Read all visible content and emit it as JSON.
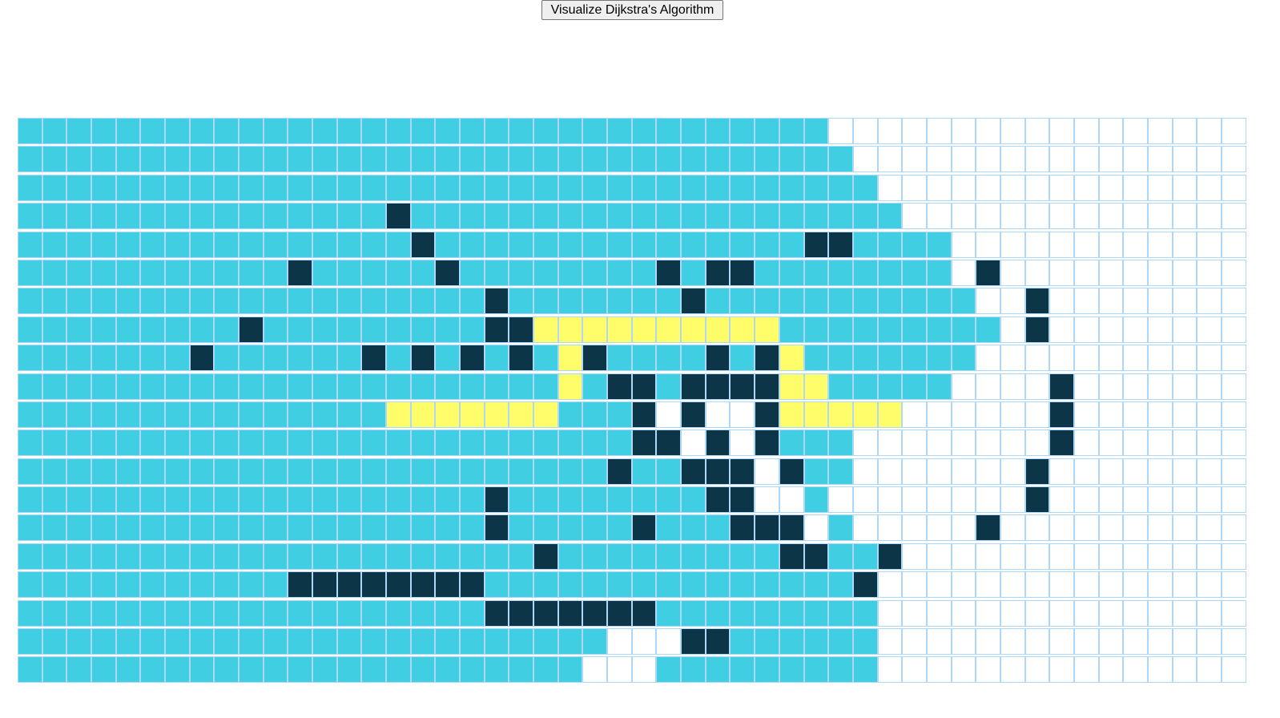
{
  "toolbar": {
    "visualize_label": "Visualize Dijkstra's Algorithm"
  },
  "grid": {
    "rows": 20,
    "cols": 50,
    "legend": {
      ".": "unvisited",
      "v": "visited",
      "w": "wall",
      "p": "shortest-path"
    },
    "cells": [
      "vvvvvvvvvvvvvvvvvvvvvvvvvvvvvvvvv.................",
      "vvvvvvvvvvvvvvvvvvvvvvvvvvvvvvvvvv................",
      "vvvvvvvvvvvvvvvvvvvvvvvvvvvvvvvvvvv...............",
      "vvvvvvvvvvvvvvvwvvvvvvvvvvvvvvvvvvvv..............",
      "vvvvvvvvvvvvvvvvwvvvvvvvvvvvvvvvwwvvvv............",
      "vvvvvvvvvvvwvvvvvwvvvvvvvvwvwwvvvvvvvv.w..........",
      "vvvvvvvvvvvvvvvvvvvwvvvvvvvwvvvvvvvvvvv..w........",
      "vvvvvvvvvwvvvvvvvvvwwppppppppppvvvvvvvvv.w........",
      "vvvvvvvwvvvvvvwvwvwvwvpwvvvvwvwpvvvvvvv...........",
      "vvvvvvvvvvvvvvvvvvvvvvpvwwvwwwwppvvvvv....w.......",
      "vvvvvvvvvvvvvvvpppppppvvvw.w..wppppp......w.......",
      "vvvvvvvvvvvvvvvvvvvvvvvvvww.w.wvvv........w.......",
      "vvvvvvvvvvvvvvvvvvvvvvvvwvvwww.wvv.......w........",
      "vvvvvvvvvvvvvvvvvvvwvvvvvvvvww..v........w........",
      "vvvvvvvvvvvvvvvvvvvwvvvvvwvvvwww.v.....w..........",
      "vvvvvvvvvvvvvvvvvvvvvwvvvvvvvvvwwvvw..............",
      "vvvvvvvvvvvwwwwwwwwvvvvvvvvvvvvvvvw...............",
      "vvvvvvvvvvvvvvvvvvvwwwwwwwvvvvvvvvv...............",
      "vvvvvvvvvvvvvvvvvvvvvvvv...wwvvvvvv...............",
      "vvvvvvvvvvvvvvvvvvvvvvv...vvvvvvvvv..............."
    ]
  },
  "colors": {
    "unvisited": "#ffffff",
    "visited": "#40cee3",
    "wall": "#0c3547",
    "path": "#fffe6a",
    "cell_border": "#afd8f8"
  }
}
